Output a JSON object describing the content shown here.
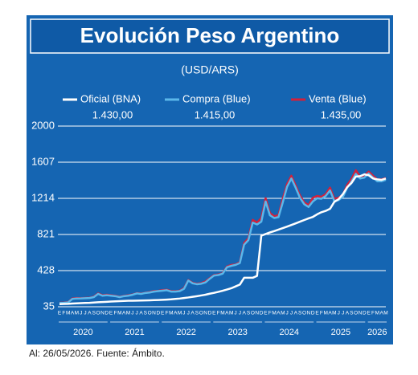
{
  "chart_data": {
    "type": "line",
    "title": "Evolución Peso Argentino",
    "subtitle": "(USD/ARS)",
    "footer": "Al: 26/05/2026. Fuente: Ámbito.",
    "categories": [
      "E",
      "F",
      "M",
      "A",
      "M",
      "J",
      "J",
      "A",
      "S",
      "O",
      "N",
      "D",
      "E",
      "F",
      "M",
      "A",
      "M",
      "J",
      "J",
      "A",
      "S",
      "O",
      "N",
      "D",
      "E",
      "F",
      "M",
      "A",
      "M",
      "J",
      "J",
      "A",
      "S",
      "O",
      "N",
      "D",
      "E",
      "F",
      "M",
      "A",
      "M",
      "J",
      "J",
      "A",
      "S",
      "O",
      "N",
      "D",
      "E",
      "F",
      "M",
      "A",
      "M",
      "J",
      "J",
      "A",
      "S",
      "O",
      "N",
      "D",
      "E",
      "F",
      "M",
      "A",
      "M",
      "J",
      "J",
      "A",
      "S",
      "O",
      "N",
      "D",
      "E",
      "F",
      "M",
      "A",
      "M"
    ],
    "years": [
      "2020",
      "2021",
      "2022",
      "2023",
      "2024",
      "2025",
      "2026"
    ],
    "ylim": [
      35,
      2000
    ],
    "yticks": [
      35,
      428,
      821,
      1214,
      1607,
      2000
    ],
    "grid": true,
    "series": [
      {
        "name": "Oficial (BNA)",
        "current_label": "1.430,00",
        "color": "#ffffff",
        "values": [
          63,
          65,
          67,
          70,
          72,
          74,
          76,
          78,
          81,
          84,
          86,
          89,
          92,
          94,
          96,
          98,
          100,
          101,
          102,
          103,
          104,
          105,
          107,
          108,
          110,
          113,
          116,
          120,
          124,
          130,
          136,
          143,
          150,
          158,
          166,
          177,
          186,
          197,
          209,
          222,
          236,
          256,
          276,
          350,
          350,
          350,
          370,
          808,
          826,
          843,
          858,
          874,
          890,
          907,
          924,
          942,
          960,
          978,
          996,
          1012,
          1040,
          1063,
          1078,
          1100,
          1175,
          1205,
          1260,
          1335,
          1380,
          1450,
          1455,
          1475,
          1465,
          1430,
          1420,
          1415,
          1430
        ]
      },
      {
        "name": "Compra (Blue)",
        "current_label": "1.415,00",
        "color": "#5bb8ea",
        "values": [
          75,
          78,
          82,
          120,
          125,
          126,
          128,
          130,
          140,
          175,
          155,
          160,
          155,
          150,
          140,
          150,
          155,
          165,
          180,
          175,
          185,
          190,
          200,
          205,
          210,
          215,
          200,
          200,
          205,
          230,
          320,
          290,
          280,
          285,
          300,
          340,
          375,
          380,
          395,
          465,
          480,
          490,
          510,
          710,
          760,
          950,
          930,
          960,
          1180,
          1030,
          1000,
          1010,
          1170,
          1340,
          1430,
          1330,
          1220,
          1150,
          1120,
          1180,
          1215,
          1210,
          1240,
          1300,
          1185,
          1195,
          1230,
          1330,
          1395,
          1480,
          1430,
          1440,
          1485,
          1440,
          1400,
          1400,
          1415
        ]
      },
      {
        "name": "Venta (Blue)",
        "current_label": "1.435,00",
        "color": "#d4203a",
        "values": [
          78,
          80,
          85,
          125,
          130,
          128,
          131,
          133,
          145,
          180,
          160,
          166,
          160,
          154,
          143,
          153,
          160,
          168,
          183,
          178,
          187,
          195,
          205,
          208,
          216,
          220,
          205,
          204,
          210,
          238,
          325,
          295,
          285,
          292,
          310,
          346,
          380,
          385,
          400,
          472,
          490,
          495,
          520,
          730,
          780,
          980,
          950,
          1000,
          1215,
          1055,
          1020,
          1030,
          1210,
          1370,
          1460,
          1355,
          1245,
          1170,
          1140,
          1220,
          1240,
          1230,
          1260,
          1330,
          1210,
          1220,
          1255,
          1360,
          1425,
          1520,
          1450,
          1460,
          1505,
          1460,
          1420,
          1420,
          1435
        ]
      }
    ]
  }
}
